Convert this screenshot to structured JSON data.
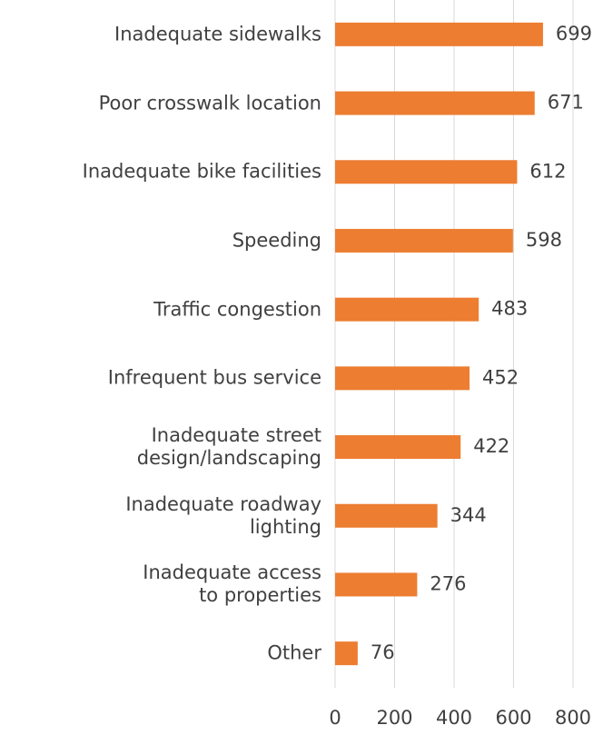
{
  "chart_data": {
    "type": "bar",
    "orientation": "horizontal",
    "categories": [
      "Inadequate sidewalks",
      "Poor crosswalk location",
      "Inadequate bike facilities",
      "Speeding",
      "Traffic congestion",
      "Infrequent bus service",
      "Inadequate street\ndesign/landscaping",
      "Inadequate roadway\nlighting",
      "Inadequate access\nto properties",
      "Other"
    ],
    "values": [
      699,
      671,
      612,
      598,
      483,
      452,
      422,
      344,
      276,
      76
    ],
    "color": "#ed7d31",
    "xlim": [
      0,
      800
    ],
    "xticks": [
      0,
      200,
      400,
      600,
      800
    ],
    "grid": true
  }
}
